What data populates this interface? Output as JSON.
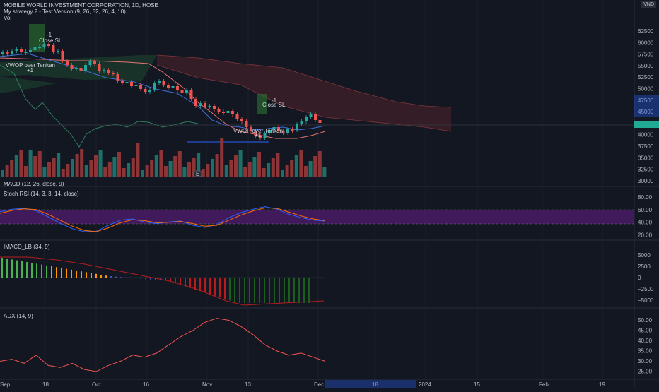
{
  "header": {
    "symbol_line": "MOBILE WORLD INVESTMENT CORPORATION, 1D, HOSE",
    "strategy_line": "My strategy 2 - Test Version (9, 26, 52, 26, 4, 10)",
    "vol_label": "Vol",
    "currency": "VND"
  },
  "price_pane": {
    "axis_ticks": [
      "62500",
      "60000",
      "57500",
      "55000",
      "52500",
      "50000",
      "47500",
      "45000",
      "42500",
      "40000",
      "37500",
      "35000",
      "32500",
      "30000"
    ],
    "annotations": {
      "close_sl_1": "Close SL",
      "minus1_1": "-1",
      "vwop_1": "VWOP over Tenkan",
      "plus1_1": "+1",
      "close_sl_2": "Close SL",
      "minus1_2": "-1",
      "vwop_2": "VWOP over Tenkan",
      "plus1_2": "+1",
      "earnings_badge": "E"
    }
  },
  "panes": {
    "macd": {
      "title": "MACD (12, 26, close, 9)"
    },
    "stoch": {
      "title": "Stoch RSI (14, 3, 3, 14, close)",
      "ticks": [
        "80.00",
        "60.00",
        "40.00",
        "20.00"
      ]
    },
    "imacd": {
      "title": "IMACD_LB (34, 9)",
      "ticks": [
        "5000",
        "2500",
        "0",
        "−2500",
        "−5000"
      ]
    },
    "adx": {
      "title": "ADX (14, 9)",
      "ticks": [
        "50.00",
        "45.00",
        "40.00",
        "35.00",
        "30.00",
        "25.00"
      ]
    }
  },
  "time_axis": [
    "Sep",
    "18",
    "Oct",
    "16",
    "Nov",
    "13",
    "Dec",
    "18",
    "2024",
    "15",
    "Feb",
    "19"
  ],
  "colors": {
    "up": "#26a69a",
    "down": "#ef5350",
    "background": "#131722",
    "grid": "#1e222d",
    "stoch_band": "#7b1fa2",
    "accent_price": "#22ab94"
  },
  "chart_data": {
    "type": "line",
    "stoch_rsi": {
      "k": [
        72,
        78,
        80,
        74,
        60,
        45,
        32,
        25,
        26,
        40,
        52,
        55,
        48,
        44,
        48,
        50,
        40,
        35,
        42,
        58,
        70,
        78,
        84,
        78,
        66,
        58,
        52,
        50
      ],
      "d": [
        68,
        75,
        79,
        77,
        66,
        52,
        38,
        28,
        25,
        34,
        46,
        53,
        51,
        46,
        47,
        49,
        44,
        38,
        40,
        52,
        64,
        74,
        81,
        80,
        71,
        62,
        55,
        51
      ]
    },
    "adx": {
      "values": [
        30,
        31,
        29,
        33,
        28,
        27,
        29,
        26,
        25,
        28,
        30,
        33,
        32,
        34,
        38,
        42,
        45,
        49,
        51,
        50,
        47,
        43,
        38,
        35,
        33,
        34,
        32,
        30
      ]
    }
  }
}
